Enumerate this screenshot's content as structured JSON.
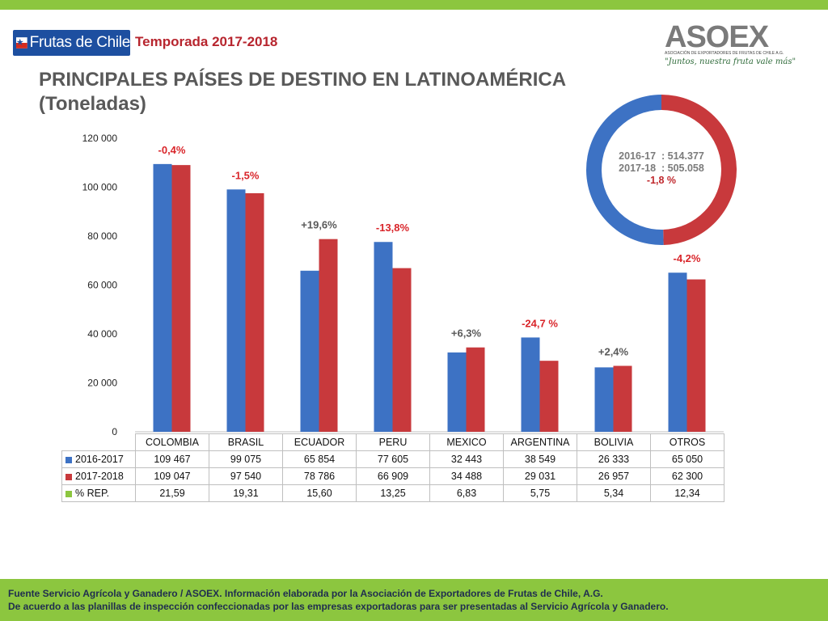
{
  "header": {
    "brand": "Frutas de Chile",
    "season": "Temporada 2017-2018",
    "title_line1": "PRINCIPALES PAÍSES DE DESTINO EN LATINOAMÉRICA",
    "title_line2": "(Toneladas)"
  },
  "asoex": {
    "name": "ASOEX",
    "subtitle": "ASOCIACIÓN DE EXPORTADORES DE FRUTAS DE CHILE A.G.",
    "slogan": "\"Juntos, nuestra fruta vale más\""
  },
  "colors": {
    "series_2016": "#3d72c4",
    "series_2017": "#c8393c",
    "rep": "#8cc63f",
    "green_bar": "#8cc63f"
  },
  "donut": {
    "line1": "2016-17  : 514.377",
    "line2": "2017-18  : 505.058",
    "line3": "-1,8 %",
    "values": [
      514377,
      505058
    ]
  },
  "chart_data": {
    "type": "bar",
    "categories": [
      "COLOMBIA",
      "BRASIL",
      "ECUADOR",
      "PERU",
      "MEXICO",
      "ARGENTINA",
      "BOLIVIA",
      "OTROS"
    ],
    "series": [
      {
        "name": "2016-2017",
        "values": [
          109467,
          99075,
          65854,
          77605,
          32443,
          38549,
          26333,
          65050
        ]
      },
      {
        "name": "2017-2018",
        "values": [
          109047,
          97540,
          78786,
          66909,
          34488,
          29031,
          26957,
          62300
        ]
      }
    ],
    "rep_label": "% REP.",
    "rep_values": [
      "21,59",
      "19,31",
      "15,60",
      "13,25",
      "6,83",
      "5,75",
      "5,34",
      "12,34"
    ],
    "value_labels": [
      [
        "109 467",
        "99 075",
        "65 854",
        "77 605",
        "32 443",
        "38 549",
        "26 333",
        "65 050"
      ],
      [
        "109 047",
        "97 540",
        "78 786",
        "66 909",
        "34 488",
        "29 031",
        "26 957",
        "62 300"
      ]
    ],
    "change_labels": [
      "-0,4%",
      "-1,5%",
      "+19,6%",
      "-13,8%",
      "+6,3%",
      "-24,7 %",
      "+2,4%",
      "-4,2%"
    ],
    "change_positive": [
      false,
      false,
      true,
      false,
      true,
      false,
      true,
      false
    ],
    "yticks": [
      "0",
      "20 000",
      "40 000",
      "60 000",
      "80 000",
      "100 000",
      "120 000"
    ],
    "ylim": [
      0,
      120000
    ],
    "legend": "data table below chart"
  },
  "footer": {
    "line1": "Fuente Servicio Agrícola y Ganadero / ASOEX. Información elaborada por la Asociación de Exportadores de  Frutas de Chile, A.G.",
    "line2": "De acuerdo a las planillas de inspección confeccionadas por las empresas exportadoras  para ser presentadas al Servicio Agrícola y Ganadero."
  }
}
